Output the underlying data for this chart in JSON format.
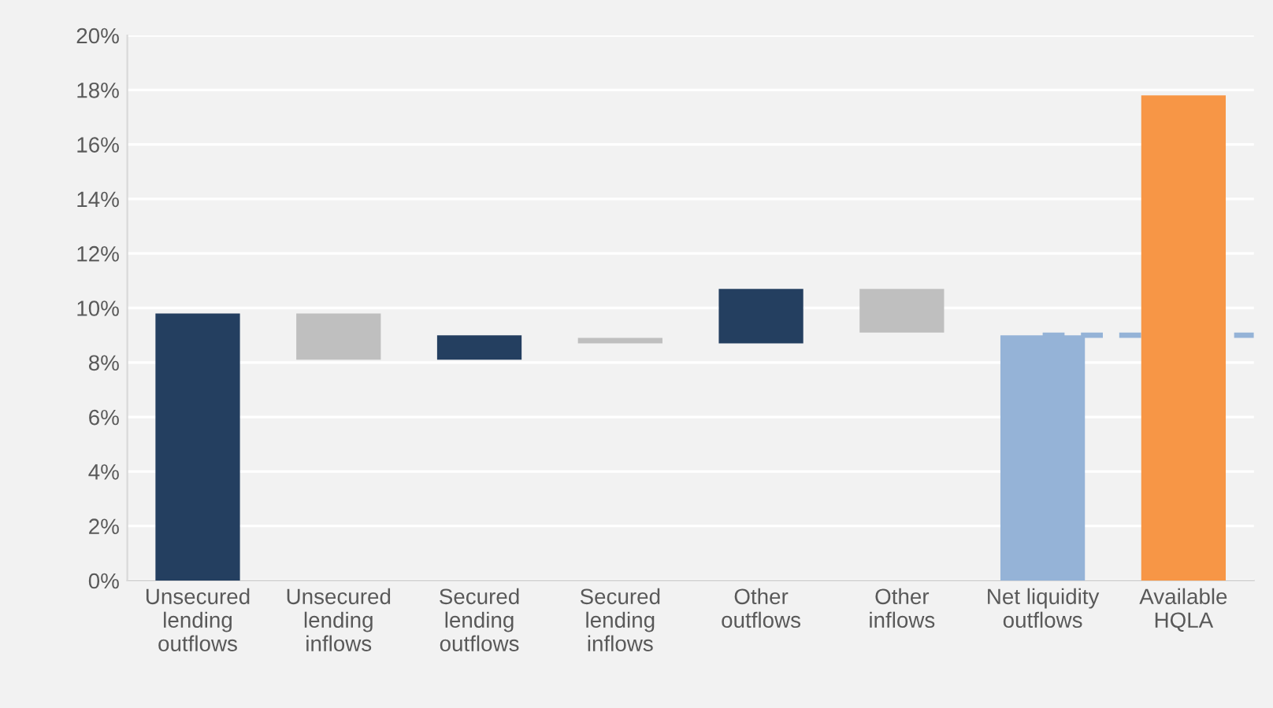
{
  "chart_data": {
    "type": "bar",
    "categories": [
      "Unsecured\nlending\noutflows",
      "Unsecured\nlending\ninflows",
      "Secured\nlending\noutflows",
      "Secured\nlending\ninflows",
      "Other\noutflows",
      "Other\ninflows",
      "Net liquidity\noutflows",
      "Available\nHQLA"
    ],
    "values": [
      9.8,
      1.7,
      0.9,
      0.2,
      2.0,
      1.6,
      9.0,
      17.8
    ],
    "base": [
      0,
      8.1,
      8.1,
      8.7,
      8.7,
      9.1,
      0,
      0
    ],
    "colors": [
      "#243f60",
      "#bfbfbf",
      "#243f60",
      "#bfbfbf",
      "#243f60",
      "#bfbfbf",
      "#95b3d7",
      "#f79646"
    ],
    "ylim": [
      0,
      20
    ],
    "yticks": [
      {
        "value": 0,
        "label": "0%"
      },
      {
        "value": 2,
        "label": "2%"
      },
      {
        "value": 4,
        "label": "4%"
      },
      {
        "value": 6,
        "label": "6%"
      },
      {
        "value": 8,
        "label": "8%"
      },
      {
        "value": 10,
        "label": "10%"
      },
      {
        "value": 12,
        "label": "12%"
      },
      {
        "value": 14,
        "label": "14%"
      },
      {
        "value": 16,
        "label": "16%"
      },
      {
        "value": 18,
        "label": "18%"
      },
      {
        "value": 20,
        "label": "20%"
      }
    ],
    "ref_lines": [
      {
        "axis": "y",
        "value": 9.0,
        "color": "#95b3d7",
        "line_style": "dashed"
      }
    ],
    "grid": "y",
    "legend": false
  }
}
